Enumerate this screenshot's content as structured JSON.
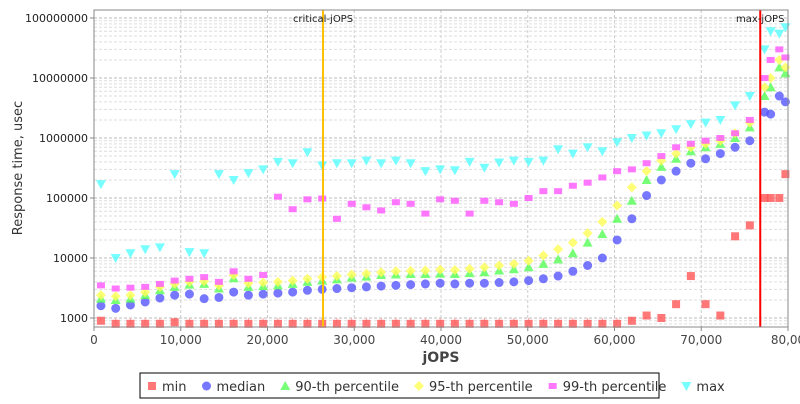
{
  "chart_data": {
    "type": "scatter",
    "xlabel": "jOPS",
    "ylabel": "Response time, usec",
    "xlim": [
      0,
      80000
    ],
    "ylim": [
      700,
      150000000
    ],
    "yscale": "log",
    "grid": true,
    "legend_position": "bottom",
    "x_ticks": [
      "0",
      "10,000",
      "20,000",
      "30,000",
      "40,000",
      "50,000",
      "60,000",
      "70,000",
      "80,00"
    ],
    "x_tick_values": [
      0,
      10000,
      20000,
      30000,
      40000,
      50000,
      60000,
      70000,
      80000
    ],
    "y_ticks": [
      "1000",
      "10000",
      "100000",
      "1000000",
      "10000000",
      "100000000"
    ],
    "y_tick_values": [
      1000,
      10000,
      100000,
      1000000,
      10000000,
      100000000
    ],
    "markers": [
      {
        "label": "critical-jOPS",
        "x": 26400,
        "color": "#ffc000"
      },
      {
        "label": "max-jOPS",
        "x": 76800,
        "color": "#ff0000"
      }
    ],
    "x": [
      800,
      2500,
      4200,
      5900,
      7600,
      9300,
      11000,
      12700,
      14400,
      16100,
      17800,
      19500,
      21200,
      22900,
      24600,
      26300,
      28000,
      29700,
      31400,
      33100,
      34800,
      36500,
      38200,
      39900,
      41600,
      43300,
      45000,
      46700,
      48400,
      50100,
      51800,
      53500,
      55200,
      56900,
      58600,
      60300,
      62000,
      63700,
      65400,
      67100,
      68800,
      70500,
      72200,
      73900,
      75600,
      77300,
      78000,
      79000,
      79700
    ],
    "series": [
      {
        "name": "min",
        "color": "#ff5555",
        "shape": "square",
        "values": [
          900,
          800,
          800,
          800,
          800,
          850,
          800,
          800,
          800,
          800,
          800,
          800,
          800,
          800,
          800,
          800,
          800,
          800,
          800,
          800,
          800,
          800,
          800,
          800,
          800,
          800,
          800,
          800,
          800,
          800,
          800,
          800,
          800,
          800,
          800,
          800,
          900,
          1100,
          1000,
          1700,
          5000,
          1700,
          1100,
          23000,
          35000,
          100000,
          100000,
          100000,
          250000
        ]
      },
      {
        "name": "median",
        "color": "#5555ff",
        "shape": "circle",
        "values": [
          1600,
          1450,
          1650,
          1850,
          2150,
          2400,
          2500,
          2100,
          2200,
          2700,
          2400,
          2500,
          2600,
          2700,
          2900,
          3000,
          3100,
          3200,
          3300,
          3400,
          3500,
          3600,
          3700,
          3800,
          3700,
          3800,
          3800,
          3900,
          4000,
          4200,
          4500,
          5000,
          6000,
          7500,
          10000,
          20000,
          45000,
          110000,
          200000,
          280000,
          380000,
          450000,
          550000,
          700000,
          900000,
          2700000,
          2500000,
          5000000,
          4000000
        ]
      },
      {
        "name": "90-th percentile",
        "color": "#55ff55",
        "shape": "triangle-up",
        "values": [
          2100,
          2000,
          2100,
          2400,
          2900,
          3300,
          3600,
          3700,
          3100,
          4600,
          3300,
          3400,
          3500,
          3700,
          4000,
          4200,
          4400,
          4700,
          4900,
          5200,
          5300,
          5400,
          5400,
          5500,
          5400,
          5600,
          5800,
          6200,
          6500,
          7000,
          8000,
          9500,
          12000,
          18000,
          25000,
          45000,
          90000,
          200000,
          330000,
          450000,
          600000,
          700000,
          800000,
          1000000,
          1500000,
          5000000,
          7000000,
          15000000,
          12000000
        ]
      },
      {
        "name": "95-th percentile",
        "color": "#ffff55",
        "shape": "diamond",
        "values": [
          2400,
          2300,
          2400,
          2700,
          3300,
          3700,
          4000,
          4100,
          3500,
          5200,
          3800,
          3900,
          4000,
          4200,
          4500,
          4800,
          5000,
          5300,
          5500,
          5800,
          6000,
          6100,
          6200,
          6400,
          6300,
          6600,
          7000,
          7500,
          8000,
          9000,
          11000,
          14000,
          18000,
          26000,
          40000,
          75000,
          150000,
          280000,
          420000,
          550000,
          700000,
          800000,
          900000,
          1200000,
          1800000,
          7000000,
          10000000,
          20000000,
          15000000
        ]
      },
      {
        "name": "99-th percentile",
        "color": "#ff55ff",
        "shape": "rect",
        "values": [
          3500,
          3100,
          3200,
          3300,
          3700,
          4200,
          4500,
          4800,
          4000,
          6000,
          4500,
          5200,
          105000,
          65000,
          95000,
          98000,
          45000,
          80000,
          70000,
          62000,
          85000,
          80000,
          55000,
          95000,
          90000,
          55000,
          90000,
          85000,
          80000,
          100000,
          130000,
          130000,
          160000,
          180000,
          220000,
          280000,
          300000,
          380000,
          500000,
          700000,
          800000,
          900000,
          1000000,
          1200000,
          2000000,
          10000000,
          20000000,
          30000000,
          22000000
        ]
      },
      {
        "name": "max",
        "color": "#55ffff",
        "shape": "triangle-down",
        "values": [
          170000,
          10000,
          12000,
          14000,
          15000,
          250000,
          12500,
          12000,
          250000,
          200000,
          260000,
          300000,
          400000,
          380000,
          580000,
          350000,
          380000,
          380000,
          420000,
          380000,
          420000,
          380000,
          280000,
          300000,
          290000,
          400000,
          320000,
          390000,
          420000,
          400000,
          420000,
          650000,
          550000,
          700000,
          600000,
          850000,
          1000000,
          1100000,
          1200000,
          1400000,
          1700000,
          1800000,
          2000000,
          3500000,
          5000000,
          30000000,
          60000000,
          55000000,
          70000000
        ]
      }
    ]
  }
}
